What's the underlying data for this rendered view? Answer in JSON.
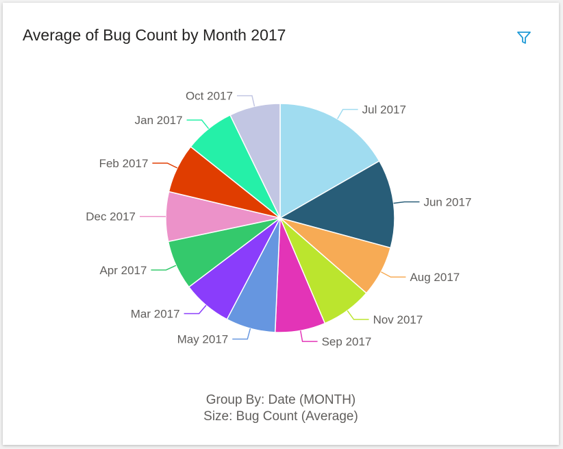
{
  "card": {
    "title": "Average of Bug Count by Month 2017",
    "filter_icon": "filter-icon",
    "footer_group_by": "Group By: Date (MONTH)",
    "footer_size": "Size: Bug Count (Average)"
  },
  "chart_data": {
    "type": "pie",
    "title": "Average of Bug Count by Month 2017",
    "slices": [
      {
        "label": "Jul 2017",
        "value": 16.7,
        "color": "#a0dcf0"
      },
      {
        "label": "Jun 2017",
        "value": 12.5,
        "color": "#285d78"
      },
      {
        "label": "Aug 2017",
        "value": 7.2,
        "color": "#f7ab55"
      },
      {
        "label": "Nov 2017",
        "value": 7.2,
        "color": "#bbe52e"
      },
      {
        "label": "Sep 2017",
        "value": 7.1,
        "color": "#e334b7"
      },
      {
        "label": "May 2017",
        "value": 7.0,
        "color": "#6696e0"
      },
      {
        "label": "Mar 2017",
        "value": 7.0,
        "color": "#8a3dfb"
      },
      {
        "label": "Apr 2017",
        "value": 7.0,
        "color": "#34c96c"
      },
      {
        "label": "Dec 2017",
        "value": 7.0,
        "color": "#ec92c9"
      },
      {
        "label": "Feb 2017",
        "value": 7.0,
        "color": "#e03d00"
      },
      {
        "label": "Jan 2017",
        "value": 7.1,
        "color": "#25f0a8"
      },
      {
        "label": "Oct 2017",
        "value": 7.2,
        "color": "#c2c6e3"
      }
    ],
    "legend": "none",
    "data_labels": "outside-with-leader-lines"
  }
}
